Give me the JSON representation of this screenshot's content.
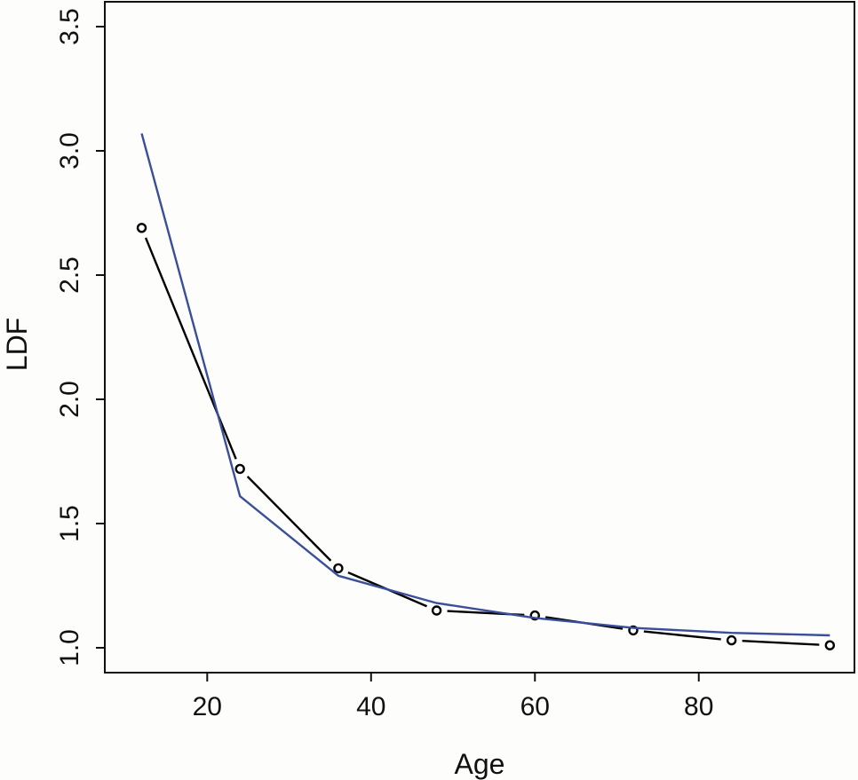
{
  "chart_data": {
    "type": "line",
    "xlabel": "Age",
    "ylabel": "LDF",
    "xlim": [
      7.5,
      99
    ],
    "ylim": [
      0.9,
      3.6
    ],
    "x_ticks": [
      "20",
      "40",
      "60",
      "80"
    ],
    "y_ticks": [
      "1.0",
      "1.5",
      "2.0",
      "2.5",
      "3.0",
      "3.5"
    ],
    "grid": false,
    "series": [
      {
        "style": "points-with-dashed-line",
        "color": "#000000",
        "x": [
          12,
          24,
          36,
          48,
          60,
          72,
          84,
          96
        ],
        "y": [
          2.69,
          1.72,
          1.32,
          1.15,
          1.13,
          1.07,
          1.03,
          1.01
        ]
      },
      {
        "style": "line",
        "color": "#3a4f9a",
        "x": [
          12,
          24,
          36,
          48,
          60,
          72,
          84,
          96
        ],
        "y": [
          3.07,
          1.61,
          1.29,
          1.18,
          1.12,
          1.08,
          1.06,
          1.05
        ]
      }
    ]
  }
}
